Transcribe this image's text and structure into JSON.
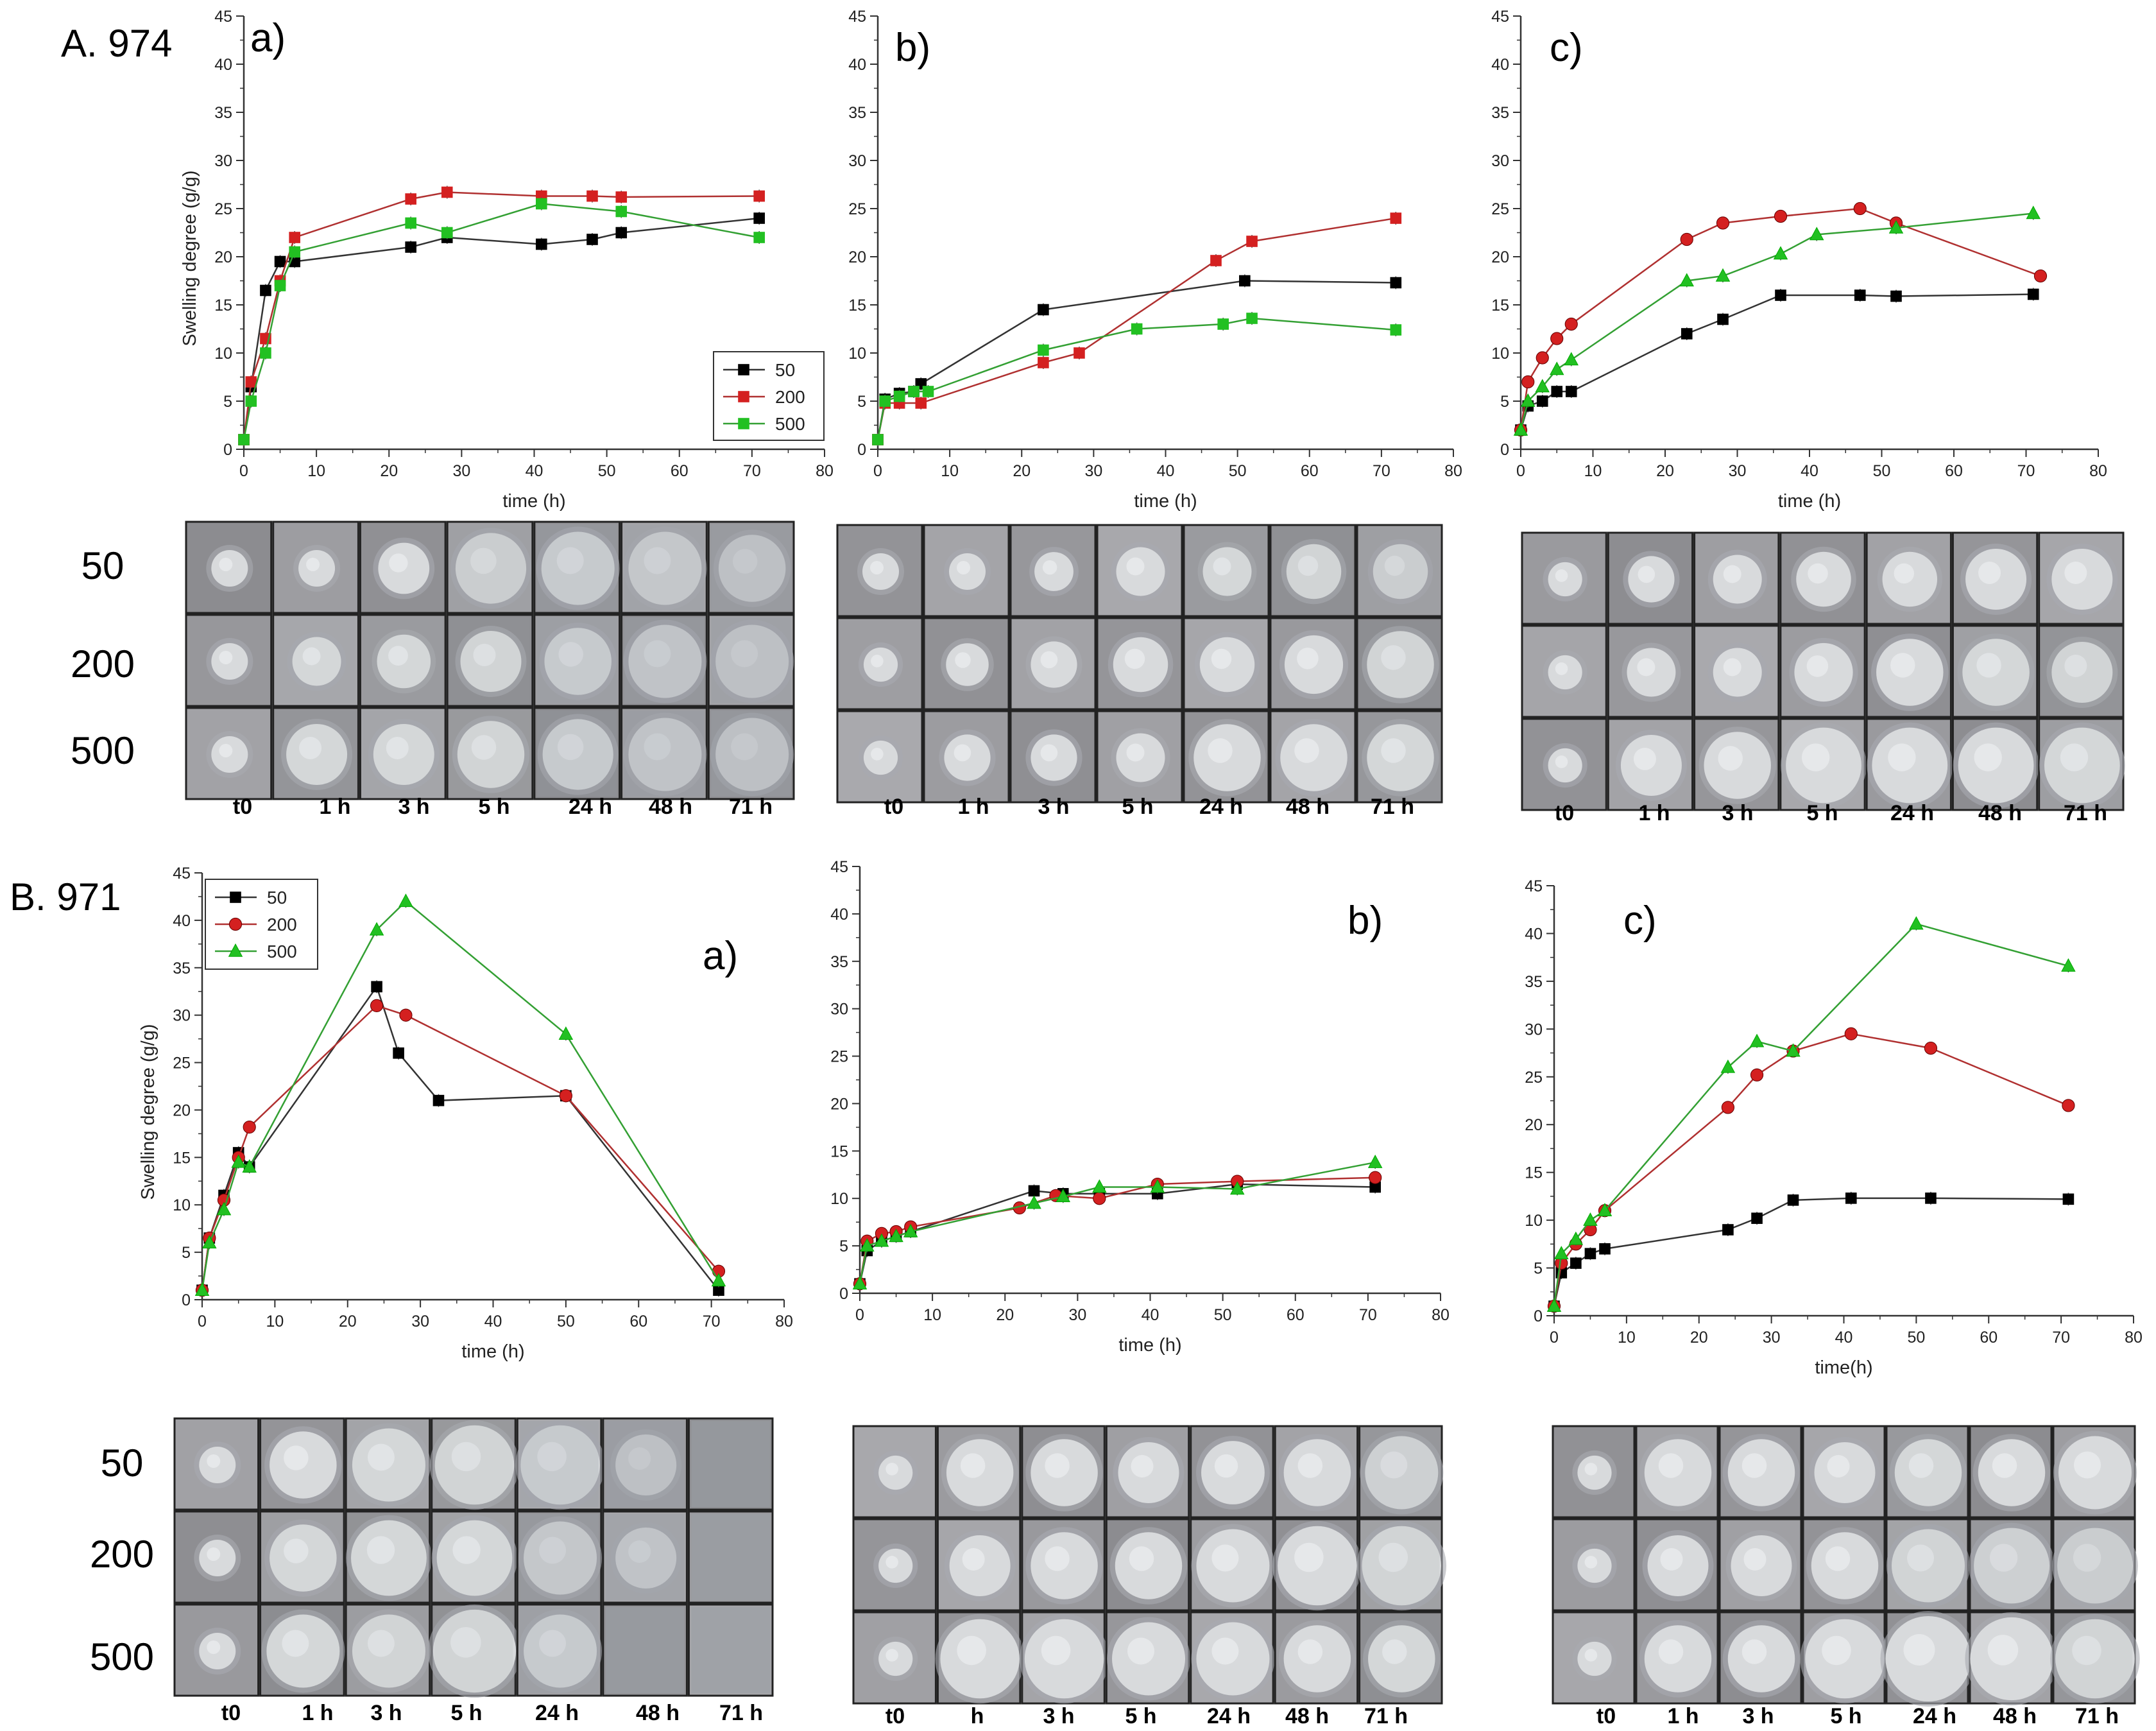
{
  "figure": {
    "section_a_label": "A. 974",
    "section_b_label": "B. 971",
    "sample_row_labels": [
      "50",
      "200",
      "500"
    ],
    "time_labels_a": [
      "t0",
      "1 h",
      "3 h",
      "5 h",
      "24 h",
      "48 h",
      "71 h"
    ],
    "time_labels_b_panel_b": [
      "t0",
      "h",
      "3 h",
      "5 h",
      "24 h",
      "48 h",
      "71 h"
    ]
  },
  "chart_data": [
    {
      "id": "A-a",
      "panel_label": "a)",
      "type": "line",
      "xlabel": "time (h)",
      "ylabel": "Swelling degree (g/g)",
      "xlim": [
        0,
        80
      ],
      "ylim": [
        0,
        45
      ],
      "grid": false,
      "legend": "right-middle",
      "series": [
        {
          "name": "50",
          "marker": "square",
          "color": "#000000",
          "line_color": "#333333",
          "points": [
            [
              0,
              1
            ],
            [
              1,
              6.5
            ],
            [
              3,
              16.5
            ],
            [
              5,
              19.5
            ],
            [
              7,
              19.5
            ],
            [
              23,
              21
            ],
            [
              28,
              22
            ],
            [
              41,
              21.3
            ],
            [
              48,
              21.8
            ],
            [
              52,
              22.5
            ],
            [
              71,
              24
            ]
          ]
        },
        {
          "name": "200",
          "marker": "square",
          "color": "#d42020",
          "line_color": "#b03030",
          "points": [
            [
              0,
              1
            ],
            [
              1,
              7
            ],
            [
              3,
              11.5
            ],
            [
              5,
              17.5
            ],
            [
              7,
              22
            ],
            [
              23,
              26
            ],
            [
              28,
              26.7
            ],
            [
              41,
              26.3
            ],
            [
              48,
              26.3
            ],
            [
              52,
              26.2
            ],
            [
              71,
              26.3
            ]
          ]
        },
        {
          "name": "500",
          "marker": "square",
          "color": "#22c022",
          "line_color": "#33a033",
          "points": [
            [
              0,
              1
            ],
            [
              1,
              5
            ],
            [
              3,
              10
            ],
            [
              5,
              17
            ],
            [
              7,
              20.5
            ],
            [
              23,
              23.5
            ],
            [
              28,
              22.5
            ],
            [
              41,
              25.5
            ],
            [
              52,
              24.7
            ],
            [
              71,
              22
            ]
          ]
        }
      ]
    },
    {
      "id": "A-b",
      "panel_label": "b)",
      "type": "line",
      "xlabel": "time (h)",
      "ylabel": "",
      "xlim": [
        0,
        80
      ],
      "ylim": [
        0,
        45
      ],
      "grid": false,
      "series": [
        {
          "marker": "square",
          "color": "#000000",
          "line_color": "#333333",
          "points": [
            [
              0,
              1
            ],
            [
              1,
              5.2
            ],
            [
              3,
              5.8
            ],
            [
              5,
              6
            ],
            [
              6,
              6.8
            ],
            [
              23,
              14.5
            ],
            [
              51,
              17.5
            ],
            [
              72,
              17.3
            ]
          ]
        },
        {
          "marker": "square",
          "color": "#d42020",
          "line_color": "#b03030",
          "points": [
            [
              0,
              1
            ],
            [
              1,
              4.8
            ],
            [
              3,
              4.8
            ],
            [
              6,
              4.8
            ],
            [
              23,
              9
            ],
            [
              28,
              10
            ],
            [
              47,
              19.6
            ],
            [
              52,
              21.6
            ],
            [
              72,
              24
            ]
          ]
        },
        {
          "marker": "square",
          "color": "#22c022",
          "line_color": "#33a033",
          "points": [
            [
              0,
              1
            ],
            [
              1,
              5
            ],
            [
              3,
              5.5
            ],
            [
              5,
              6
            ],
            [
              7,
              6
            ],
            [
              23,
              10.3
            ],
            [
              36,
              12.5
            ],
            [
              48,
              13
            ],
            [
              52,
              13.6
            ],
            [
              72,
              12.4
            ]
          ]
        }
      ]
    },
    {
      "id": "A-c",
      "panel_label": "c)",
      "type": "line",
      "xlabel": "time (h)",
      "ylabel": "",
      "xlim": [
        0,
        80
      ],
      "ylim": [
        0,
        45
      ],
      "grid": false,
      "series": [
        {
          "marker": "square",
          "color": "#000000",
          "line_color": "#333333",
          "points": [
            [
              0,
              2
            ],
            [
              1,
              4.5
            ],
            [
              3,
              5
            ],
            [
              5,
              6
            ],
            [
              7,
              6
            ],
            [
              23,
              12
            ],
            [
              28,
              13.5
            ],
            [
              36,
              16
            ],
            [
              47,
              16
            ],
            [
              52,
              15.9
            ],
            [
              71,
              16.1
            ]
          ]
        },
        {
          "marker": "circle",
          "color": "#d42020",
          "line_color": "#b03030",
          "points": [
            [
              0,
              2
            ],
            [
              1,
              7
            ],
            [
              3,
              9.5
            ],
            [
              5,
              11.5
            ],
            [
              7,
              13
            ],
            [
              23,
              21.8
            ],
            [
              28,
              23.5
            ],
            [
              36,
              24.2
            ],
            [
              47,
              25
            ],
            [
              52,
              23.5
            ],
            [
              72,
              18
            ]
          ]
        },
        {
          "marker": "triangle",
          "color": "#22c022",
          "line_color": "#33a033",
          "points": [
            [
              0,
              2
            ],
            [
              1,
              5
            ],
            [
              3,
              6.5
            ],
            [
              5,
              8.3
            ],
            [
              7,
              9.3
            ],
            [
              23,
              17.5
            ],
            [
              28,
              18
            ],
            [
              36,
              20.3
            ],
            [
              41,
              22.3
            ],
            [
              52,
              23
            ],
            [
              71,
              24.5
            ]
          ]
        }
      ]
    },
    {
      "id": "B-a",
      "panel_label": "a)",
      "type": "line",
      "xlabel": "time (h)",
      "ylabel": "Swelling degree (g/g)",
      "xlim": [
        0,
        80
      ],
      "ylim": [
        0,
        45
      ],
      "grid": false,
      "legend": "top-left",
      "series": [
        {
          "name": "50",
          "marker": "square",
          "color": "#000000",
          "line_color": "#333333",
          "points": [
            [
              0,
              1
            ],
            [
              1,
              6.5
            ],
            [
              3,
              11
            ],
            [
              5,
              15.5
            ],
            [
              6.5,
              14
            ],
            [
              24,
              33
            ],
            [
              27,
              26
            ],
            [
              32.5,
              21
            ],
            [
              50,
              21.5
            ],
            [
              71,
              1
            ]
          ]
        },
        {
          "name": "200",
          "marker": "circle",
          "color": "#d42020",
          "line_color": "#b03030",
          "points": [
            [
              0,
              1
            ],
            [
              1,
              6.5
            ],
            [
              3,
              10.5
            ],
            [
              5,
              15
            ],
            [
              6.5,
              18.2
            ],
            [
              24,
              31
            ],
            [
              28,
              30
            ],
            [
              50,
              21.5
            ],
            [
              71,
              3
            ]
          ]
        },
        {
          "name": "500",
          "marker": "triangle",
          "color": "#22c022",
          "line_color": "#33a033",
          "points": [
            [
              0,
              1
            ],
            [
              1,
              6
            ],
            [
              3,
              9.5
            ],
            [
              5,
              14.5
            ],
            [
              6.5,
              14
            ],
            [
              24,
              39
            ],
            [
              28,
              42
            ],
            [
              50,
              28
            ],
            [
              71,
              2
            ]
          ]
        }
      ]
    },
    {
      "id": "B-b",
      "panel_label": "b)",
      "type": "line",
      "xlabel": "time (h)",
      "ylabel": "",
      "xlim": [
        0,
        80
      ],
      "ylim": [
        0,
        45
      ],
      "grid": false,
      "series": [
        {
          "marker": "square",
          "color": "#000000",
          "line_color": "#333333",
          "points": [
            [
              0,
              1
            ],
            [
              1,
              4.5
            ],
            [
              3,
              5.5
            ],
            [
              5,
              6
            ],
            [
              7,
              6.5
            ],
            [
              24,
              10.8
            ],
            [
              28,
              10.5
            ],
            [
              33,
              10.5
            ],
            [
              41,
              10.5
            ],
            [
              52,
              11.5
            ],
            [
              71,
              11.2
            ]
          ]
        },
        {
          "marker": "circle",
          "color": "#d42020",
          "line_color": "#b03030",
          "points": [
            [
              0,
              1
            ],
            [
              1,
              5.5
            ],
            [
              3,
              6.3
            ],
            [
              5,
              6.5
            ],
            [
              7,
              7
            ],
            [
              22,
              9
            ],
            [
              27,
              10.3
            ],
            [
              33,
              10
            ],
            [
              41,
              11.5
            ],
            [
              52,
              11.8
            ],
            [
              71,
              12.2
            ]
          ]
        },
        {
          "marker": "triangle",
          "color": "#22c022",
          "line_color": "#33a033",
          "points": [
            [
              0,
              1
            ],
            [
              1,
              5
            ],
            [
              3,
              5.5
            ],
            [
              5,
              6
            ],
            [
              7,
              6.5
            ],
            [
              24,
              9.5
            ],
            [
              28,
              10.2
            ],
            [
              33,
              11.2
            ],
            [
              41,
              11.2
            ],
            [
              52,
              11
            ],
            [
              71,
              13.8
            ]
          ]
        }
      ]
    },
    {
      "id": "B-c",
      "panel_label": "c)",
      "type": "line",
      "xlabel": "time(h)",
      "ylabel": "",
      "xlim": [
        0,
        80
      ],
      "ylim": [
        0,
        45
      ],
      "grid": false,
      "series": [
        {
          "marker": "square",
          "color": "#000000",
          "line_color": "#333333",
          "points": [
            [
              0,
              1
            ],
            [
              1,
              4.5
            ],
            [
              3,
              5.5
            ],
            [
              5,
              6.5
            ],
            [
              7,
              7
            ],
            [
              24,
              9
            ],
            [
              28,
              10.2
            ],
            [
              33,
              12.1
            ],
            [
              41,
              12.3
            ],
            [
              52,
              12.3
            ],
            [
              71,
              12.2
            ]
          ]
        },
        {
          "marker": "circle",
          "color": "#d42020",
          "line_color": "#b03030",
          "points": [
            [
              0,
              1
            ],
            [
              1,
              5.5
            ],
            [
              3,
              7.5
            ],
            [
              5,
              9
            ],
            [
              7,
              11
            ],
            [
              24,
              21.8
            ],
            [
              28,
              25.2
            ],
            [
              33,
              27.7
            ],
            [
              41,
              29.5
            ],
            [
              52,
              28
            ],
            [
              71,
              22
            ]
          ]
        },
        {
          "marker": "triangle",
          "color": "#22c022",
          "line_color": "#33a033",
          "points": [
            [
              0,
              1
            ],
            [
              1,
              6.5
            ],
            [
              3,
              8
            ],
            [
              5,
              10
            ],
            [
              7,
              11
            ],
            [
              24,
              26
            ],
            [
              28,
              28.7
            ],
            [
              33,
              27.7
            ],
            [
              50,
              41
            ],
            [
              71,
              36.6
            ]
          ]
        }
      ]
    }
  ]
}
